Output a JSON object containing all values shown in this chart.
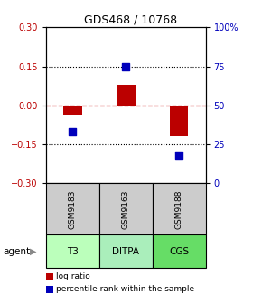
{
  "title": "GDS468 / 10768",
  "samples": [
    "GSM9183",
    "GSM9163",
    "GSM9188"
  ],
  "agents": [
    "T3",
    "DITPA",
    "CGS"
  ],
  "log_ratios": [
    -0.04,
    0.08,
    -0.12
  ],
  "percentile_ranks": [
    33,
    75,
    18
  ],
  "ylim_left": [
    -0.3,
    0.3
  ],
  "ylim_right": [
    0,
    100
  ],
  "yticks_left": [
    -0.3,
    -0.15,
    0,
    0.15,
    0.3
  ],
  "yticks_right": [
    0,
    25,
    50,
    75,
    100
  ],
  "ytick_labels_right": [
    "0",
    "25",
    "50",
    "75",
    "100%"
  ],
  "bar_color": "#bb0000",
  "dot_color": "#0000bb",
  "hline_color": "#cc0000",
  "agent_colors": [
    "#bbffbb",
    "#aaeebb",
    "#66dd66"
  ],
  "sample_bg_color": "#cccccc",
  "bar_width": 0.35,
  "dot_size": 40,
  "title_fontsize": 9,
  "tick_fontsize": 7,
  "label_fontsize": 7
}
